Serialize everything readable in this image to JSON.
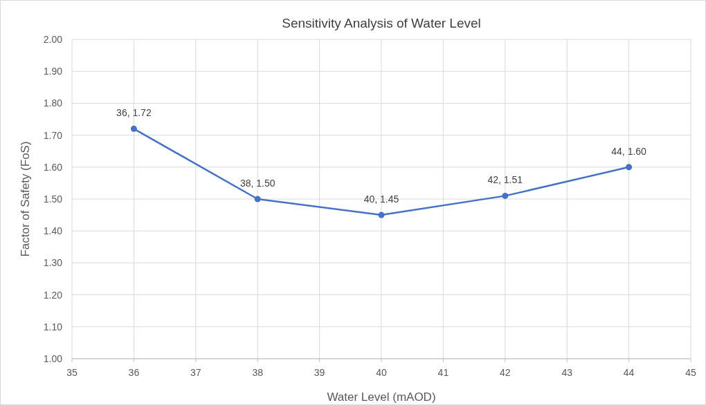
{
  "chart_data": {
    "type": "line",
    "title": "Sensitivity Analysis of Water Level",
    "xlabel": "Water Level (mAOD)",
    "ylabel": "Factor of Safety (FoS)",
    "x": [
      36,
      38,
      40,
      42,
      44
    ],
    "series": [
      {
        "color": "#4472c4",
        "values": [
          1.72,
          1.5,
          1.45,
          1.51,
          1.6
        ],
        "value_labels": [
          "36, 1.72",
          "38, 1.50",
          "40, 1.45",
          "42, 1.51",
          "44, 1.60"
        ]
      }
    ],
    "xlim": [
      35,
      45
    ],
    "xticks": [
      35,
      36,
      37,
      38,
      39,
      40,
      41,
      42,
      43,
      44,
      45
    ],
    "ylim": [
      1,
      2
    ],
    "yticks": [
      {
        "value": 1,
        "label": "1.00"
      },
      {
        "value": 1.1,
        "label": "1.10"
      },
      {
        "value": 1.2,
        "label": "1.20"
      },
      {
        "value": 1.3,
        "label": "1.30"
      },
      {
        "value": 1.4,
        "label": "1.40"
      },
      {
        "value": 1.5,
        "label": "1.50"
      },
      {
        "value": 1.6,
        "label": "1.60"
      },
      {
        "value": 1.7,
        "label": "1.70"
      },
      {
        "value": 1.8,
        "label": "1.80"
      },
      {
        "value": 1.9,
        "label": "1.90"
      },
      {
        "value": 2,
        "label": "2.00"
      }
    ],
    "grid": true,
    "marker": "circle",
    "line_style": "solid"
  }
}
